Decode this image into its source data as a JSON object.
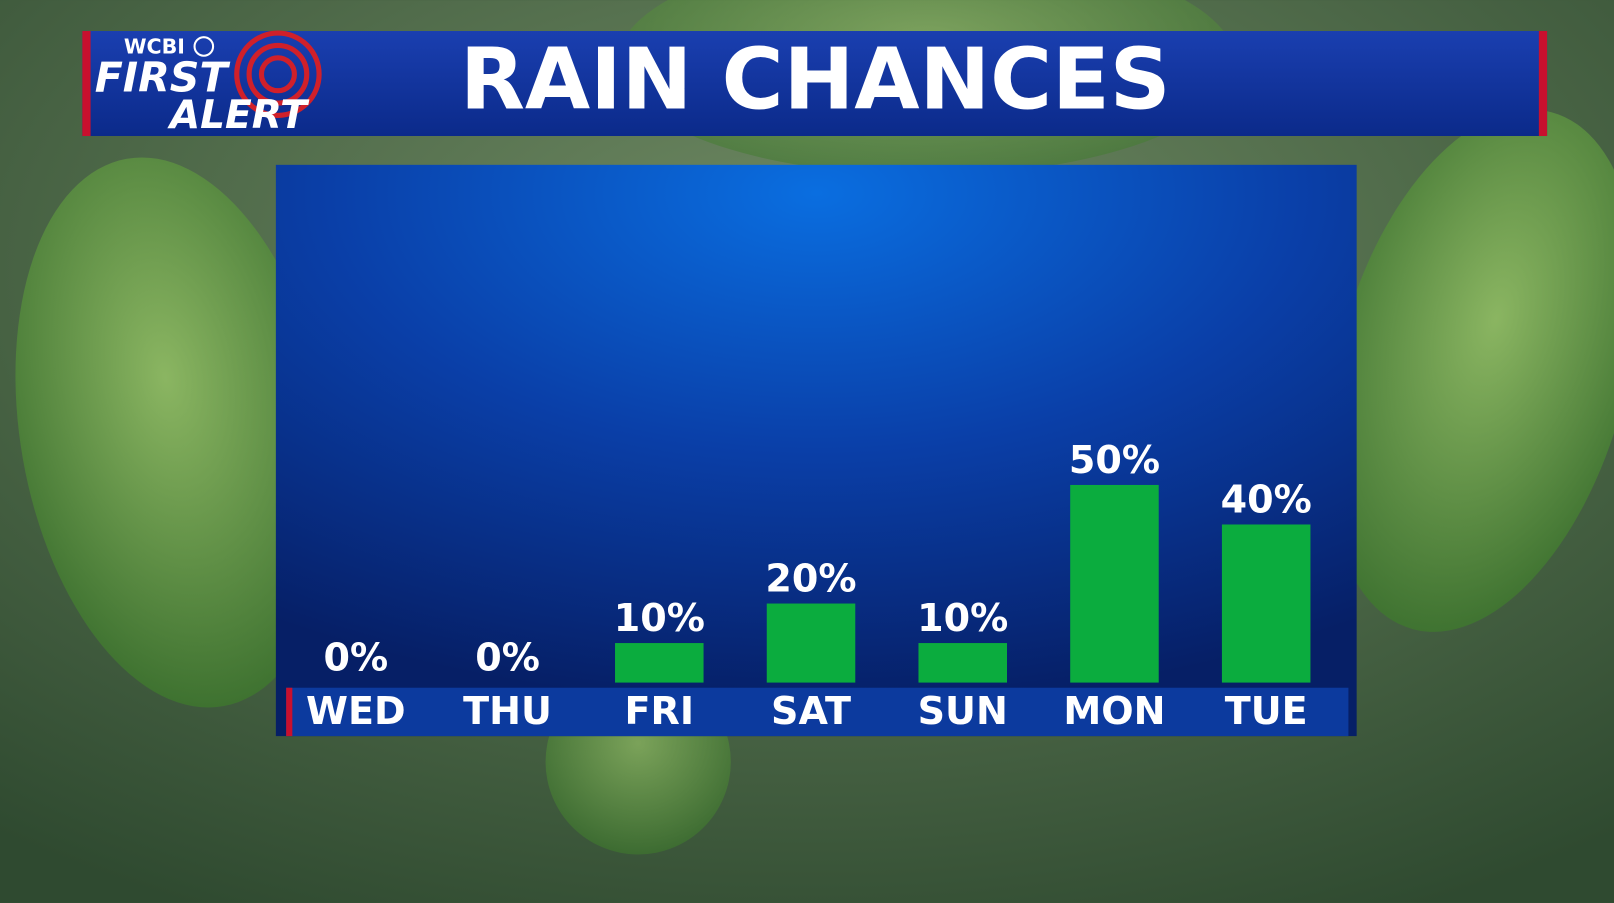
{
  "header": {
    "station": "WCBI",
    "brand_top": "FIRST",
    "brand_bottom": "ALERT"
  },
  "chart_data": {
    "type": "bar",
    "title": "RAIN CHANCES",
    "categories": [
      "WED",
      "THU",
      "FRI",
      "SAT",
      "SUN",
      "MON",
      "TUE"
    ],
    "values": [
      0,
      0,
      10,
      20,
      10,
      50,
      40
    ],
    "value_labels": [
      "0%",
      "0%",
      "10%",
      "20%",
      "10%",
      "50%",
      "40%"
    ],
    "color": "#0bac3e"
  }
}
